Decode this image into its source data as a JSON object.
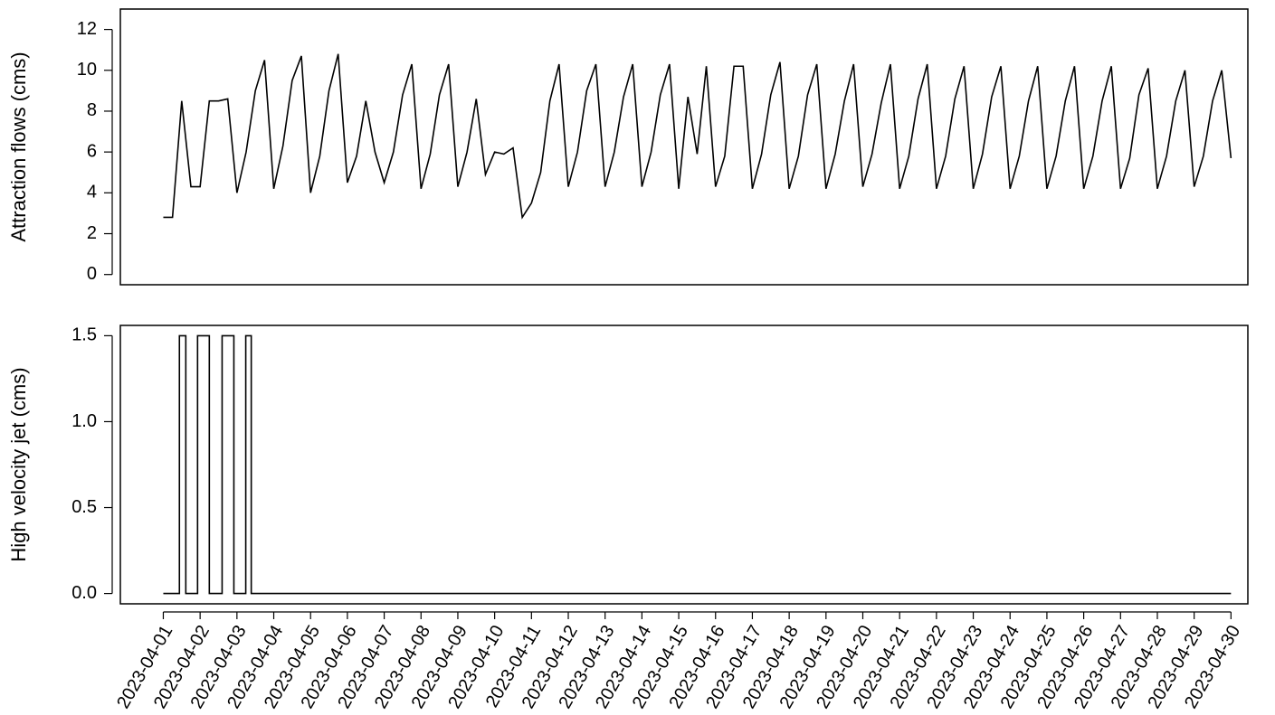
{
  "chart_data": [
    {
      "type": "line",
      "ylabel": "Attraction flows (cms)",
      "xlim": [
        "2023-03-30 20:00",
        "2023-04-30 11:00"
      ],
      "ylim": [
        -0.5,
        13
      ],
      "yticks": [
        0,
        2,
        4,
        6,
        8,
        10,
        12
      ],
      "series": [
        {
          "name": "Attraction flows",
          "color": "#000000",
          "x": [
            "2023-04-01 00:00",
            "2023-04-01 06:00",
            "2023-04-01 12:00",
            "2023-04-01 18:00",
            "2023-04-02 00:00",
            "2023-04-02 06:00",
            "2023-04-02 12:00",
            "2023-04-02 18:00",
            "2023-04-03 00:00",
            "2023-04-03 06:00",
            "2023-04-03 12:00",
            "2023-04-03 18:00",
            "2023-04-04 00:00",
            "2023-04-04 06:00",
            "2023-04-04 12:00",
            "2023-04-04 18:00",
            "2023-04-05 00:00",
            "2023-04-05 06:00",
            "2023-04-05 12:00",
            "2023-04-05 18:00",
            "2023-04-06 00:00",
            "2023-04-06 06:00",
            "2023-04-06 12:00",
            "2023-04-06 18:00",
            "2023-04-07 00:00",
            "2023-04-07 06:00",
            "2023-04-07 12:00",
            "2023-04-07 18:00",
            "2023-04-08 00:00",
            "2023-04-08 06:00",
            "2023-04-08 12:00",
            "2023-04-08 18:00",
            "2023-04-09 00:00",
            "2023-04-09 06:00",
            "2023-04-09 12:00",
            "2023-04-09 18:00",
            "2023-04-10 00:00",
            "2023-04-10 06:00",
            "2023-04-10 12:00",
            "2023-04-10 18:00",
            "2023-04-11 00:00",
            "2023-04-11 06:00",
            "2023-04-11 12:00",
            "2023-04-11 18:00",
            "2023-04-12 00:00",
            "2023-04-12 06:00",
            "2023-04-12 12:00",
            "2023-04-12 18:00",
            "2023-04-13 00:00",
            "2023-04-13 06:00",
            "2023-04-13 12:00",
            "2023-04-13 18:00",
            "2023-04-14 00:00",
            "2023-04-14 06:00",
            "2023-04-14 12:00",
            "2023-04-14 18:00",
            "2023-04-15 00:00",
            "2023-04-15 06:00",
            "2023-04-15 12:00",
            "2023-04-15 18:00",
            "2023-04-16 00:00",
            "2023-04-16 06:00",
            "2023-04-16 12:00",
            "2023-04-16 18:00",
            "2023-04-17 00:00",
            "2023-04-17 06:00",
            "2023-04-17 12:00",
            "2023-04-17 18:00",
            "2023-04-18 00:00",
            "2023-04-18 06:00",
            "2023-04-18 12:00",
            "2023-04-18 18:00",
            "2023-04-19 00:00",
            "2023-04-19 06:00",
            "2023-04-19 12:00",
            "2023-04-19 18:00",
            "2023-04-20 00:00",
            "2023-04-20 06:00",
            "2023-04-20 12:00",
            "2023-04-20 18:00",
            "2023-04-21 00:00",
            "2023-04-21 06:00",
            "2023-04-21 12:00",
            "2023-04-21 18:00",
            "2023-04-22 00:00",
            "2023-04-22 06:00",
            "2023-04-22 12:00",
            "2023-04-22 18:00",
            "2023-04-23 00:00",
            "2023-04-23 06:00",
            "2023-04-23 12:00",
            "2023-04-23 18:00",
            "2023-04-24 00:00",
            "2023-04-24 06:00",
            "2023-04-24 12:00",
            "2023-04-24 18:00",
            "2023-04-25 00:00",
            "2023-04-25 06:00",
            "2023-04-25 12:00",
            "2023-04-25 18:00",
            "2023-04-26 00:00",
            "2023-04-26 06:00",
            "2023-04-26 12:00",
            "2023-04-26 18:00",
            "2023-04-27 00:00",
            "2023-04-27 06:00",
            "2023-04-27 12:00",
            "2023-04-27 18:00",
            "2023-04-28 00:00",
            "2023-04-28 06:00",
            "2023-04-28 12:00",
            "2023-04-28 18:00",
            "2023-04-29 00:00",
            "2023-04-29 06:00",
            "2023-04-29 12:00",
            "2023-04-29 18:00",
            "2023-04-30 00:00"
          ],
          "values": [
            2.8,
            2.8,
            8.5,
            4.3,
            4.3,
            8.5,
            8.5,
            8.6,
            4.0,
            6.0,
            9.0,
            10.5,
            4.2,
            6.3,
            9.5,
            10.7,
            4.0,
            5.8,
            9.0,
            10.8,
            4.5,
            5.8,
            8.5,
            6.0,
            4.5,
            6.0,
            8.8,
            10.3,
            4.2,
            5.9,
            8.8,
            10.3,
            4.3,
            6.0,
            8.6,
            4.9,
            6.0,
            5.9,
            6.2,
            2.8,
            3.5,
            5.0,
            8.5,
            10.3,
            4.3,
            6.0,
            9.0,
            10.3,
            4.3,
            6.0,
            8.7,
            10.3,
            4.3,
            6.0,
            8.8,
            10.3,
            4.2,
            8.7,
            5.9,
            10.2,
            4.3,
            5.8,
            10.2,
            10.2,
            4.2,
            5.9,
            8.8,
            10.4,
            4.2,
            5.8,
            8.8,
            10.3,
            4.2,
            5.9,
            8.5,
            10.3,
            4.3,
            5.9,
            8.4,
            10.3,
            4.2,
            5.8,
            8.6,
            10.3,
            4.2,
            5.8,
            8.6,
            10.2,
            4.2,
            5.9,
            8.7,
            10.2,
            4.2,
            5.8,
            8.5,
            10.2,
            4.2,
            5.8,
            8.5,
            10.2,
            4.2,
            5.8,
            8.5,
            10.2,
            4.2,
            5.7,
            8.8,
            10.1,
            4.2,
            5.8,
            8.5,
            10.0,
            4.3,
            5.8,
            8.5,
            10.0,
            5.7
          ]
        }
      ]
    },
    {
      "type": "line",
      "ylabel": "High velocity jet (cms)",
      "xlim": [
        "2023-03-30 20:00",
        "2023-04-30 11:00"
      ],
      "ylim": [
        -0.06,
        1.56
      ],
      "yticks": [
        {
          "value": 0,
          "label": "0.0"
        },
        0.5,
        {
          "value": 1,
          "label": "1.0"
        },
        1.5
      ],
      "xticks": [
        "2023-04-01",
        "2023-04-02",
        "2023-04-03",
        "2023-04-04",
        "2023-04-05",
        "2023-04-06",
        "2023-04-07",
        "2023-04-08",
        "2023-04-09",
        "2023-04-10",
        "2023-04-11",
        "2023-04-12",
        "2023-04-13",
        "2023-04-14",
        "2023-04-15",
        "2023-04-16",
        "2023-04-17",
        "2023-04-18",
        "2023-04-19",
        "2023-04-20",
        "2023-04-21",
        "2023-04-22",
        "2023-04-23",
        "2023-04-24",
        "2023-04-25",
        "2023-04-26",
        "2023-04-27",
        "2023-04-28",
        "2023-04-29",
        "2023-04-30"
      ],
      "series": [
        {
          "name": "High velocity jet",
          "color": "#000000",
          "x": [
            "2023-04-01 00:00",
            "2023-04-01 10:30",
            "2023-04-01 10:30",
            "2023-04-01 14:40",
            "2023-04-01 14:40",
            "2023-04-01 22:20",
            "2023-04-01 22:20",
            "2023-04-02 06:00",
            "2023-04-02 06:00",
            "2023-04-02 14:20",
            "2023-04-02 14:20",
            "2023-04-02 22:00",
            "2023-04-02 22:00",
            "2023-04-03 05:45",
            "2023-04-03 05:45",
            "2023-04-03 09:20",
            "2023-04-03 09:20",
            "2023-04-30 00:00"
          ],
          "values": [
            0,
            0,
            1.5,
            1.5,
            0,
            0,
            1.5,
            1.5,
            0,
            0,
            1.5,
            1.5,
            0,
            0,
            1.5,
            1.5,
            0,
            0
          ]
        }
      ]
    }
  ]
}
